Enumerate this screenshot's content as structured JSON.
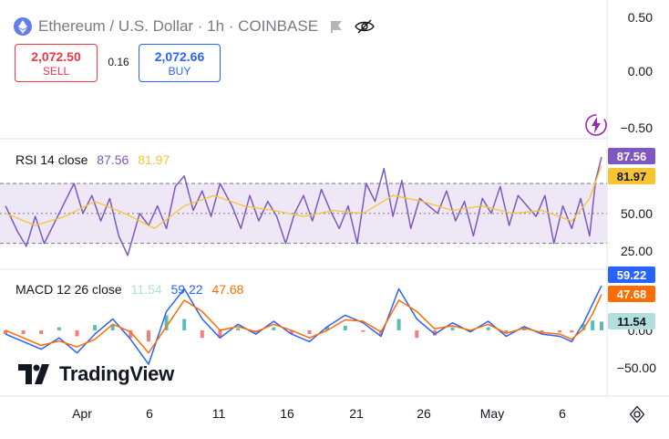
{
  "header": {
    "title": "Ethereum / U.S. Dollar · 1h · COINBASE",
    "logo_icon": "ethereum-icon",
    "flag_icon": "flag-icon",
    "visibility_icon": "eye-off-icon"
  },
  "trade": {
    "sell_price": "2,072.50",
    "sell_label": "SELL",
    "spread": "0.16",
    "buy_price": "2,072.66",
    "buy_label": "BUY"
  },
  "rsi_legend": {
    "name": "RSI 14 close",
    "value": "87.56",
    "ma_value": "81.97"
  },
  "macd_legend": {
    "name": "MACD 12 26 close",
    "hist_value": "11.54",
    "macd_value": "59.22",
    "signal_value": "47.68"
  },
  "watermark": "TradingView",
  "colors": {
    "rsi_line": "#7e57c2",
    "rsi_ma": "#f7c531",
    "rsi_band": "#ede7f6",
    "macd_line": "#2962ff",
    "signal_line": "#ff6d00",
    "hist_up": "#26a69a",
    "hist_down": "#ef5350",
    "hist_pale": "#b2dfdb",
    "sell": "#f23645",
    "buy": "#2962ff"
  },
  "chart_data": [
    {
      "type": "line",
      "pane": "price",
      "yticks": [
        "0.50",
        "0.00",
        "−0.50"
      ]
    },
    {
      "type": "line",
      "pane": "rsi",
      "yticks": [
        "50.00",
        "25.00"
      ],
      "band": [
        30,
        70
      ],
      "ylim": [
        17,
        95
      ],
      "current_labels": [
        {
          "text": "87.56",
          "value": 87.56,
          "bg": "#7e57c2",
          "fg": "#ffffff"
        },
        {
          "text": "81.97",
          "value": 81.97,
          "bg": "#f7c531",
          "fg": "#131722"
        }
      ],
      "series": [
        {
          "name": "RSI",
          "color": "#7e57c2",
          "x": [
            0,
            0.02,
            0.035,
            0.05,
            0.065,
            0.08,
            0.1,
            0.115,
            0.13,
            0.145,
            0.16,
            0.175,
            0.19,
            0.205,
            0.225,
            0.24,
            0.255,
            0.27,
            0.285,
            0.3,
            0.315,
            0.33,
            0.345,
            0.36,
            0.38,
            0.395,
            0.41,
            0.425,
            0.44,
            0.455,
            0.47,
            0.485,
            0.5,
            0.515,
            0.53,
            0.545,
            0.56,
            0.575,
            0.59,
            0.605,
            0.62,
            0.635,
            0.65,
            0.665,
            0.68,
            0.695,
            0.71,
            0.725,
            0.74,
            0.755,
            0.77,
            0.785,
            0.8,
            0.815,
            0.83,
            0.845,
            0.86,
            0.875,
            0.89,
            0.905,
            0.92,
            0.935,
            0.95,
            0.965,
            0.98,
            0.99,
            1.0
          ],
          "values": [
            55,
            38,
            28,
            48,
            30,
            42,
            58,
            70,
            50,
            62,
            45,
            60,
            35,
            22,
            50,
            42,
            55,
            40,
            68,
            75,
            52,
            65,
            48,
            70,
            55,
            40,
            62,
            45,
            58,
            48,
            30,
            50,
            62,
            45,
            66,
            52,
            40,
            55,
            30,
            70,
            58,
            80,
            48,
            72,
            40,
            60,
            55,
            50,
            65,
            45,
            58,
            35,
            60,
            50,
            68,
            42,
            62,
            55,
            48,
            62,
            30,
            55,
            40,
            60,
            35,
            72,
            87.56
          ]
        },
        {
          "name": "RSI-based MA",
          "color": "#f7c531",
          "x": [
            0,
            0.05,
            0.1,
            0.15,
            0.2,
            0.25,
            0.3,
            0.35,
            0.4,
            0.45,
            0.5,
            0.55,
            0.6,
            0.65,
            0.7,
            0.75,
            0.8,
            0.85,
            0.9,
            0.95,
            0.98,
            1.0
          ],
          "values": [
            50,
            42,
            48,
            58,
            50,
            40,
            55,
            62,
            55,
            52,
            48,
            52,
            50,
            62,
            58,
            52,
            55,
            50,
            52,
            45,
            60,
            81.97
          ]
        }
      ]
    },
    {
      "type": "line",
      "pane": "macd",
      "yticks": [
        "0.00",
        "−50.00"
      ],
      "ylim": [
        -80,
        75
      ],
      "current_labels": [
        {
          "text": "59.22",
          "value": 59.22,
          "bg": "#2962ff",
          "fg": "#ffffff"
        },
        {
          "text": "47.68",
          "value": 47.68,
          "bg": "#ff6d00",
          "fg": "#ffffff"
        },
        {
          "text": "11.54",
          "value": 11.54,
          "bg": "#b2dfdb",
          "fg": "#131722"
        }
      ],
      "series": [
        {
          "name": "MACD",
          "color": "#2962ff",
          "x": [
            0,
            0.03,
            0.06,
            0.09,
            0.12,
            0.15,
            0.18,
            0.21,
            0.24,
            0.27,
            0.3,
            0.33,
            0.36,
            0.39,
            0.42,
            0.45,
            0.48,
            0.51,
            0.54,
            0.57,
            0.6,
            0.63,
            0.66,
            0.69,
            0.72,
            0.75,
            0.78,
            0.81,
            0.84,
            0.87,
            0.9,
            0.93,
            0.95,
            0.97,
            0.985,
            1.0
          ],
          "values": [
            -5,
            -15,
            -25,
            -10,
            -30,
            -5,
            15,
            -12,
            -45,
            25,
            55,
            15,
            -10,
            8,
            -5,
            12,
            -5,
            -15,
            5,
            20,
            10,
            -8,
            55,
            15,
            -5,
            10,
            -2,
            12,
            -8,
            5,
            -5,
            -8,
            -15,
            10,
            35,
            59.22
          ]
        },
        {
          "name": "Signal",
          "color": "#ff6d00",
          "x": [
            0,
            0.03,
            0.06,
            0.09,
            0.12,
            0.15,
            0.18,
            0.21,
            0.24,
            0.27,
            0.3,
            0.33,
            0.36,
            0.39,
            0.42,
            0.45,
            0.48,
            0.51,
            0.54,
            0.57,
            0.6,
            0.63,
            0.66,
            0.69,
            0.72,
            0.75,
            0.78,
            0.81,
            0.84,
            0.87,
            0.9,
            0.93,
            0.95,
            0.97,
            0.985,
            1.0
          ],
          "values": [
            0,
            -10,
            -20,
            -14,
            -22,
            -12,
            8,
            -2,
            -30,
            5,
            40,
            25,
            0,
            5,
            -2,
            8,
            0,
            -10,
            0,
            14,
            12,
            -2,
            40,
            25,
            2,
            6,
            0,
            8,
            -4,
            3,
            -3,
            -5,
            -12,
            2,
            22,
            47.68
          ]
        }
      ]
    }
  ],
  "x_axis": {
    "labels": [
      "Apr",
      "6",
      "11",
      "16",
      "21",
      "26",
      "May",
      "6"
    ]
  }
}
